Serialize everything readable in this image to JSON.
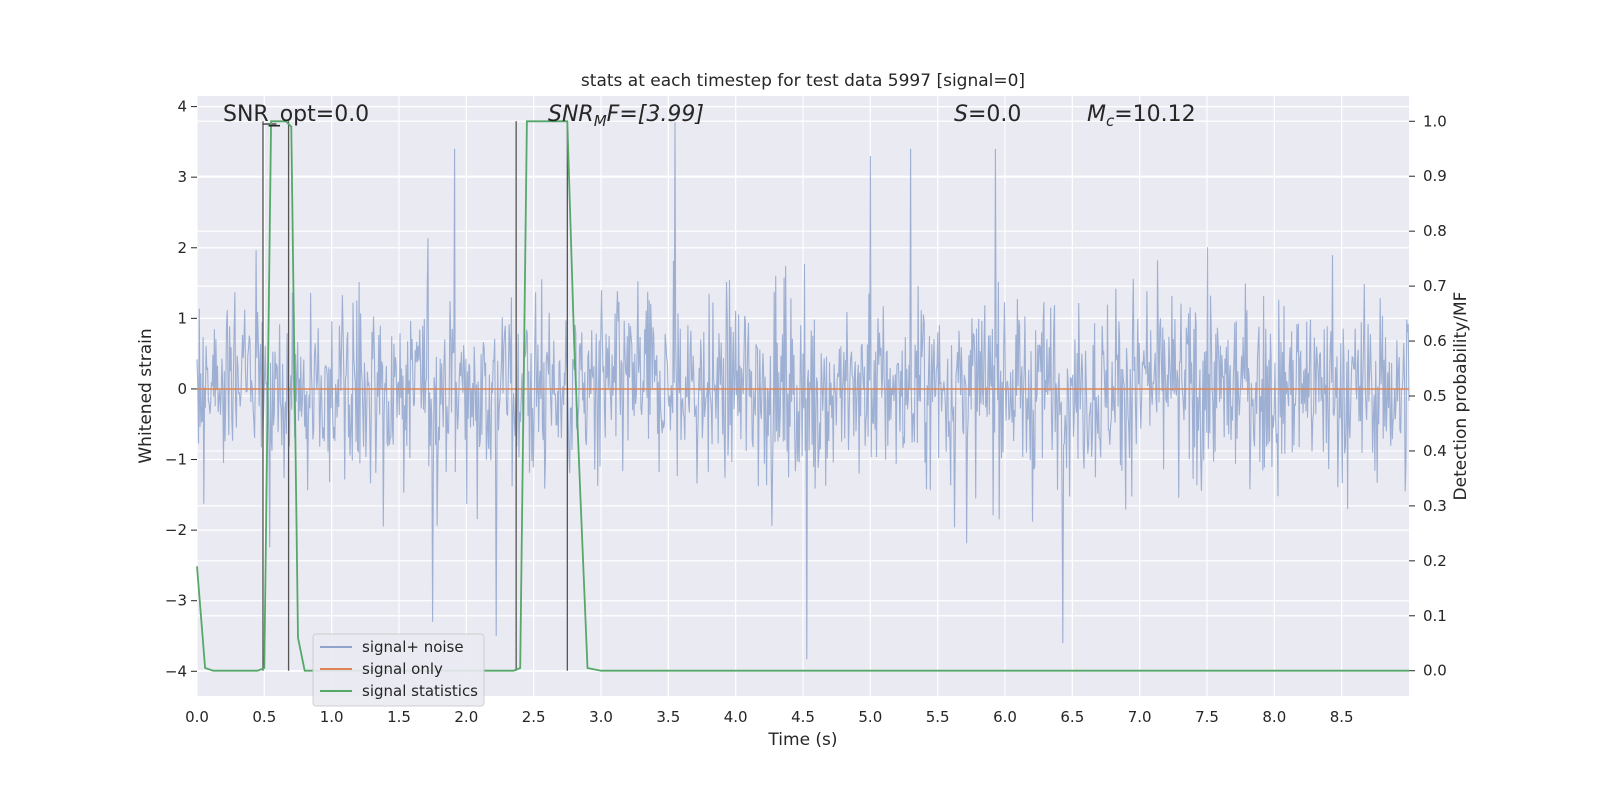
{
  "chart_data": {
    "type": "line",
    "title": "stats at each timestep for test data 5997 [signal=0]",
    "xlabel": "Time (s)",
    "ylabel_left": "Whitened strain",
    "ylabel_right": "Detection probability/MF",
    "xlim": [
      0.0,
      9.0
    ],
    "ylim_left": [
      -4.35,
      4.15
    ],
    "ylim_right": [
      -0.046,
      1.046
    ],
    "grid": true,
    "legend_placement": "lower-left",
    "x_ticks": [
      "0.0",
      "0.5",
      "1.0",
      "1.5",
      "2.0",
      "2.5",
      "3.0",
      "3.5",
      "4.0",
      "4.5",
      "5.0",
      "5.5",
      "6.0",
      "6.5",
      "7.0",
      "7.5",
      "8.0",
      "8.5"
    ],
    "y_ticks_left": [
      "4",
      "3",
      "2",
      "1",
      "0",
      "−1",
      "−2",
      "−3",
      "−4"
    ],
    "y_ticks_right": [
      "1.0",
      "0.9",
      "0.8",
      "0.7",
      "0.6",
      "0.5",
      "0.4",
      "0.3",
      "0.2",
      "0.1",
      "0.0"
    ],
    "annotations": {
      "snr_opt": "SNR_opt=0.0",
      "snr_mf_italic": "SNR",
      "snr_mf_sub": "M",
      "snr_mf_rest": "F=[3.99]",
      "s_italic": "S",
      "s_rest": "=0.0",
      "mc_italic": "M",
      "mc_sub": "c",
      "mc_rest": "=10.12"
    },
    "series": [
      {
        "name": "signal+ noise",
        "color": "#8fa4cc",
        "description_values": "noise band, roughly ±1.5 dense, spikes to ±3.8",
        "envelope": {
          "typical_upper": 1.5,
          "typical_lower": -1.5,
          "max_spike": 3.78,
          "min_spike": -3.83
        },
        "notable_spikes": [
          {
            "x": 1.91,
            "y": 3.4
          },
          {
            "x": 3.55,
            "y": 3.78
          },
          {
            "x": 4.53,
            "y": -3.83
          },
          {
            "x": 5.93,
            "y": 3.4
          },
          {
            "x": 6.43,
            "y": -3.6
          },
          {
            "x": 2.22,
            "y": -3.5
          },
          {
            "x": 5.0,
            "y": 3.3
          },
          {
            "x": 5.3,
            "y": 3.4
          },
          {
            "x": 1.75,
            "y": -3.3
          }
        ]
      },
      {
        "name": "signal only",
        "color": "#dd8452",
        "x": [
          0.0,
          9.0
        ],
        "y": [
          0.0,
          0.0
        ]
      },
      {
        "name": "signal statistics",
        "color": "#55a868",
        "axis": "right",
        "x": [
          0.0,
          0.06,
          0.12,
          0.18,
          0.24,
          0.3,
          0.36,
          0.42,
          0.45,
          0.5,
          0.55,
          0.6,
          0.66,
          0.7,
          0.75,
          0.8,
          0.9,
          1.0,
          1.5,
          2.0,
          2.3,
          2.35,
          2.4,
          2.45,
          2.5,
          2.6,
          2.75,
          2.8,
          2.85,
          2.9,
          3.0,
          4.0,
          5.0,
          6.0,
          7.0,
          8.0,
          9.0
        ],
        "y": [
          0.19,
          0.005,
          0.0,
          0.0,
          0.0,
          0.0,
          0.0,
          0.0,
          0.0,
          0.005,
          1.0,
          1.0,
          1.0,
          0.99,
          0.06,
          0.0,
          0.0,
          0.0,
          0.0,
          0.0,
          0.0,
          0.0,
          0.005,
          1.0,
          1.0,
          1.0,
          1.0,
          0.6,
          0.3,
          0.005,
          0.0,
          0.0,
          0.0,
          0.0,
          0.0,
          0.0,
          0.0
        ]
      }
    ],
    "vertical_markers": [
      0.49,
      0.68,
      2.37,
      2.75
    ],
    "legend": [
      "signal+ noise",
      "signal only",
      "signal statistics"
    ]
  }
}
